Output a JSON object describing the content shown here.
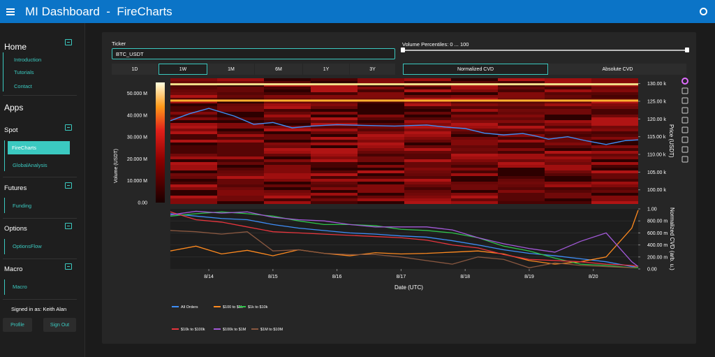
{
  "header": {
    "title": "MI Dashboard  -  FireCharts",
    "menu_icon": "hamburger-icon",
    "user_icon": "circle-user-icon"
  },
  "sidebar": {
    "home": {
      "title": "Home",
      "items": [
        "Introduction",
        "Tutorials",
        "Contact"
      ]
    },
    "apps_title": "Apps",
    "spot": {
      "title": "Spot",
      "items": [
        "FireCharts",
        "GlobalAnalysis"
      ],
      "active": "FireCharts"
    },
    "futures": {
      "title": "Futures",
      "items": [
        "Funding"
      ]
    },
    "options": {
      "title": "Options",
      "items": [
        "OptionsFlow"
      ]
    },
    "macro": {
      "title": "Macro",
      "items": [
        "Macro"
      ]
    },
    "signed_in": "Signed in as: Keith Alan",
    "profile_label": "Profile",
    "signout_label": "Sign Out"
  },
  "controls": {
    "ticker_label": "Ticker",
    "ticker_value": "BTC_USDT",
    "volume_label": "Volume Percentiles: 0 ... 100",
    "volume_range": [
      0,
      100
    ],
    "ranges": [
      "1D",
      "1W",
      "1M",
      "6M",
      "1Y",
      "3Y"
    ],
    "active_range": "1W",
    "cvd_modes": [
      "Normalized CVD",
      "Absolute CVD"
    ],
    "active_cvd_mode": "Normalized CVD"
  },
  "colors": {
    "accent": "#3bc9c0",
    "header": "#0b74c7",
    "heatmap_low": "#1a0000",
    "heatmap_high": "#ffffe0"
  },
  "chart_data": [
    {
      "type": "heatmap",
      "ylabel": "Price (USDT)",
      "yticks": [
        "130.00 k",
        "125.00 k",
        "120.00 k",
        "115.00 k",
        "110.00 k",
        "105.00 k",
        "100.00 k"
      ],
      "ylim": [
        96000,
        131500
      ],
      "colorbar_label": "Volume (USDT)",
      "colorbar_ticks": [
        "50.000 M",
        "40.000 M",
        "30.000 M",
        "20.000 M",
        "10.000 M",
        "0.00"
      ],
      "colorbar_range": [
        0,
        55000000
      ],
      "price_line": {
        "t": [
          0,
          0.3,
          0.6,
          1.0,
          1.3,
          1.6,
          1.9,
          2.2,
          2.6,
          3.0,
          3.5,
          4.0,
          4.3,
          4.6,
          4.9,
          5.2,
          5.5,
          5.7,
          5.9,
          6.2,
          6.5,
          6.8,
          7.1,
          7.3
        ],
        "price": [
          119500,
          121500,
          123000,
          120800,
          118500,
          119000,
          117500,
          118000,
          118400,
          118200,
          118000,
          118300,
          117700,
          117300,
          116000,
          115500,
          115900,
          115200,
          114300,
          115000,
          113800,
          112800,
          113900,
          114100
        ]
      },
      "bright_levels": [
        129800,
        125200
      ],
      "color": "#3e8ef7"
    },
    {
      "type": "line",
      "xlabel": "Date (UTC)",
      "ylabel": "Normalized CVD (arb. u.)",
      "yticks": [
        "1.00",
        "800.00 m",
        "600.00 m",
        "400.00 m",
        "200.00 m",
        "0.00"
      ],
      "ylim": [
        0,
        1
      ],
      "x": [
        0,
        0.4,
        0.8,
        1.2,
        1.6,
        2.0,
        2.4,
        2.8,
        3.2,
        3.6,
        4.0,
        4.4,
        4.8,
        5.2,
        5.6,
        6.0,
        6.4,
        6.8,
        7.2,
        7.3
      ],
      "categories": [
        "8/14",
        "8/15",
        "8/16",
        "8/17",
        "8/18",
        "8/19",
        "8/20"
      ],
      "series": [
        {
          "name": "All Orders",
          "color": "#3e8ef7",
          "values": [
            0.92,
            0.88,
            0.84,
            0.82,
            0.74,
            0.68,
            0.64,
            0.6,
            0.58,
            0.55,
            0.53,
            0.47,
            0.4,
            0.32,
            0.26,
            0.22,
            0.17,
            0.12,
            0.04,
            0.04
          ]
        },
        {
          "name": "$100 to $1k",
          "color": "#ff8a1f",
          "values": [
            0.3,
            0.38,
            0.25,
            0.31,
            0.22,
            0.32,
            0.26,
            0.22,
            0.27,
            0.25,
            0.26,
            0.28,
            0.3,
            0.25,
            0.14,
            0.08,
            0.12,
            0.2,
            0.68,
            0.98
          ]
        },
        {
          "name": "$1k to $10k",
          "color": "#2fc24a",
          "values": [
            0.88,
            0.92,
            0.95,
            0.92,
            0.88,
            0.8,
            0.74,
            0.74,
            0.72,
            0.66,
            0.64,
            0.6,
            0.52,
            0.38,
            0.3,
            0.18,
            0.08,
            0.06,
            0.02,
            0.02
          ]
        },
        {
          "name": "$10k to $100k",
          "color": "#e8353d",
          "values": [
            0.95,
            0.82,
            0.78,
            0.7,
            0.62,
            0.6,
            0.58,
            0.56,
            0.54,
            0.52,
            0.48,
            0.4,
            0.35,
            0.24,
            0.16,
            0.14,
            0.12,
            0.08,
            0.06,
            0.04
          ]
        },
        {
          "name": "$100k to $1M",
          "color": "#a259d8",
          "values": [
            0.9,
            0.96,
            0.93,
            0.95,
            0.86,
            0.82,
            0.8,
            0.74,
            0.7,
            0.7,
            0.7,
            0.65,
            0.52,
            0.42,
            0.34,
            0.28,
            0.46,
            0.6,
            0.12,
            0.04
          ]
        },
        {
          "name": "$1M to $10M",
          "color": "#8a5840",
          "values": [
            0.64,
            0.62,
            0.58,
            0.62,
            0.3,
            0.32,
            0.26,
            0.24,
            0.24,
            0.2,
            0.14,
            0.08,
            0.2,
            0.16,
            0.02,
            0.1,
            0.06,
            0.04,
            0.02,
            0.04
          ]
        }
      ]
    }
  ],
  "toolbar_icons": [
    "plotly-logo-icon",
    "pan-icon",
    "zoom-icon",
    "zoom-in-icon",
    "zoom-out-icon",
    "autoscale-icon",
    "reset-axes-icon",
    "download-icon",
    "camera-icon"
  ]
}
